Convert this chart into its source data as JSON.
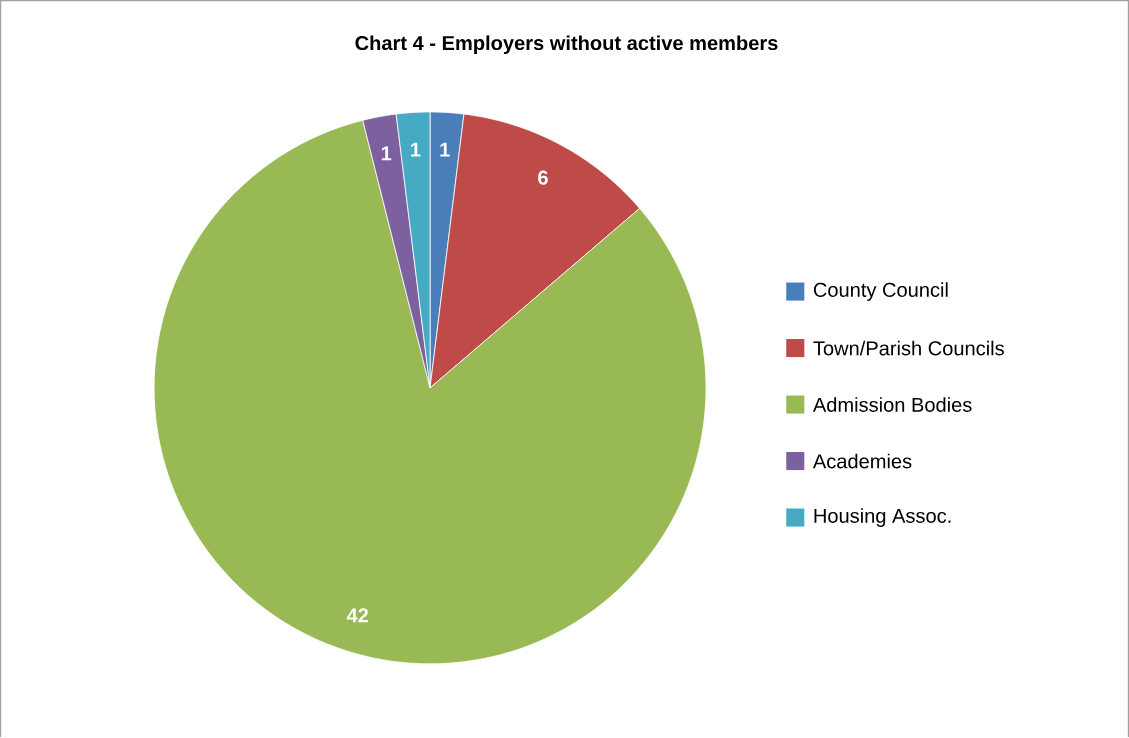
{
  "chart_data": {
    "type": "pie",
    "title": "Chart 4 - Employers without active members",
    "categories": [
      "County Council",
      "Town/Parish Councils",
      "Admission Bodies",
      "Academies",
      "Housing Assoc."
    ],
    "values": [
      1,
      6,
      42,
      1,
      1
    ],
    "colors": [
      "#4a7ebb",
      "#be4b48",
      "#98b954",
      "#7d60a0",
      "#46aac5"
    ],
    "data_labels": true,
    "legend": "right"
  }
}
